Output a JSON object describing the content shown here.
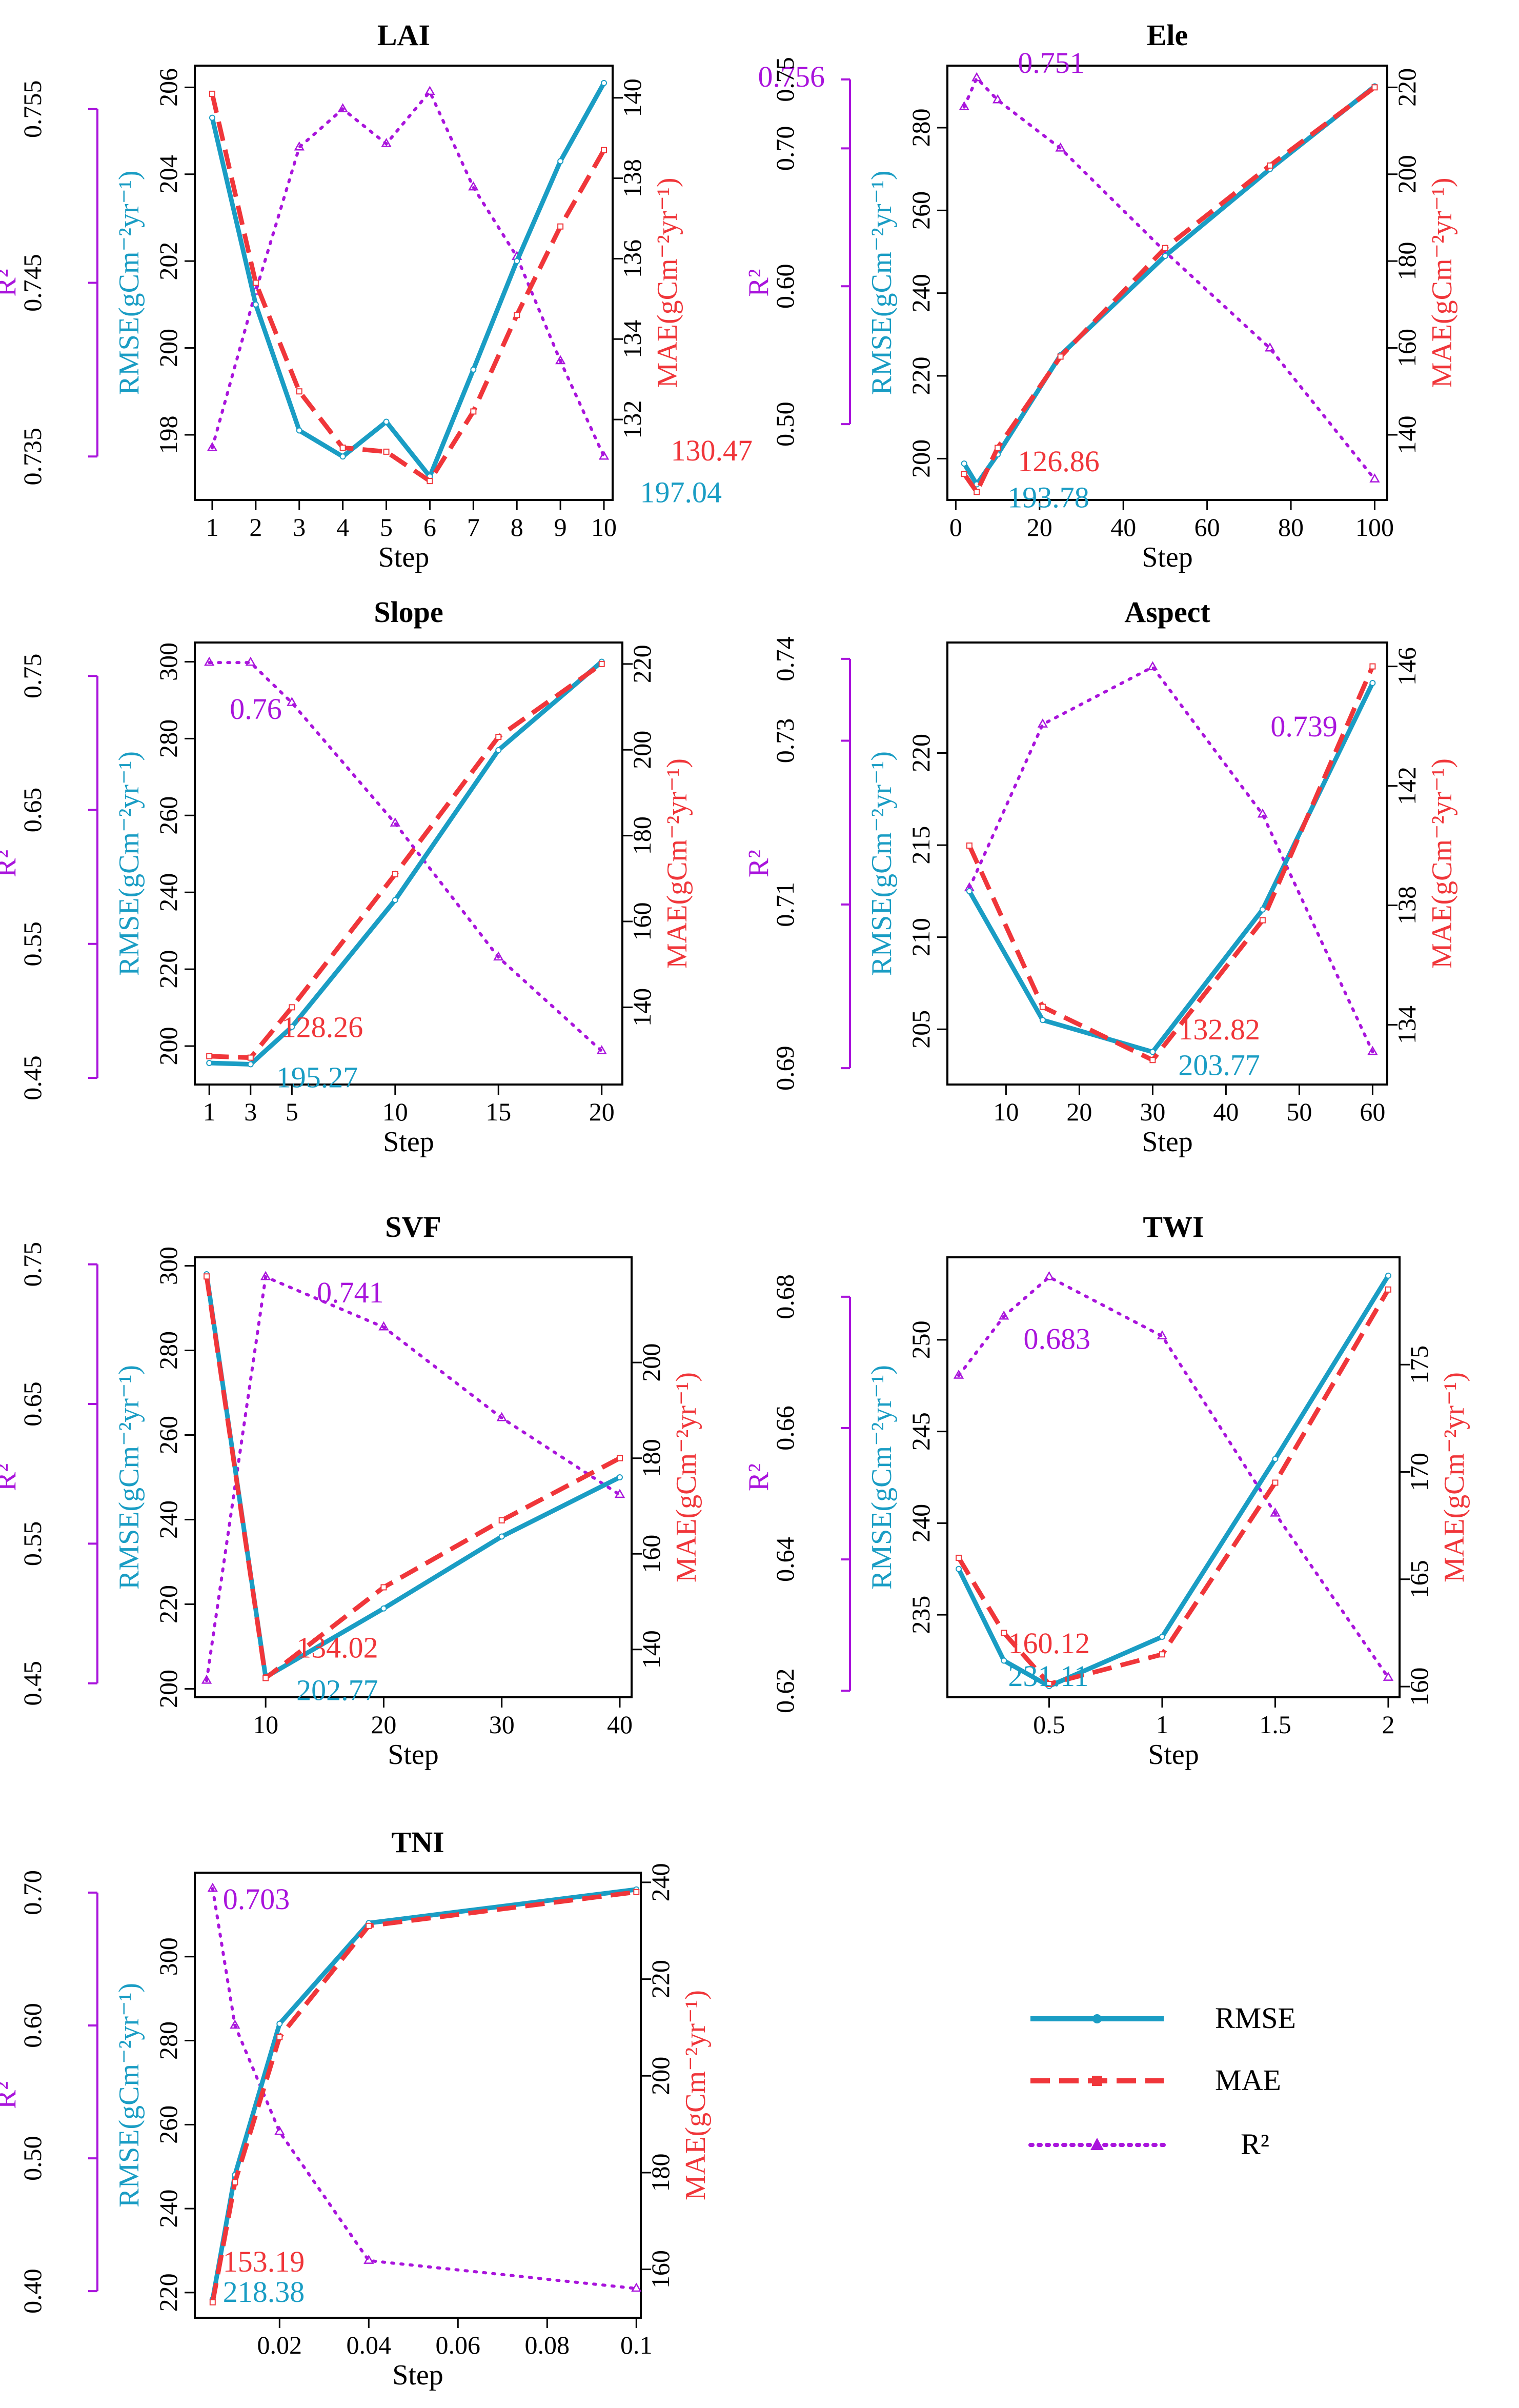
{
  "colors": {
    "rmse": "#1a9dc4",
    "mae": "#f0363a",
    "r2": "#a914dc",
    "axis": "#000000"
  },
  "legend": {
    "rmse_label": "RMSE",
    "mae_label": "MAE",
    "r2_label": "R²"
  },
  "chart_data": [
    {
      "type": "line",
      "title": "LAI",
      "xlabel": "Step",
      "ylabel_left": "RMSE(gCm⁻²yr⁻¹)",
      "ylabel_right": "MAE(gCm⁻²yr⁻¹)",
      "ylabel_r2": "R²",
      "x": [
        1,
        2,
        3,
        4,
        5,
        6,
        7,
        8,
        9,
        10
      ],
      "xlim": [
        0.6,
        10.2
      ],
      "xticks": [
        1,
        2,
        3,
        4,
        5,
        6,
        7,
        8,
        9,
        10
      ],
      "xtick_labels": [
        "1",
        "2",
        "3",
        "4",
        "5",
        "6",
        "7",
        "8",
        "9",
        "10"
      ],
      "rmse": [
        205.3,
        201.0,
        198.1,
        197.5,
        198.3,
        197.04,
        199.5,
        202.0,
        204.3,
        206.1
      ],
      "rmse_lim": [
        196.5,
        206.5
      ],
      "rmse_ticks": [
        198,
        200,
        202,
        204,
        206
      ],
      "mae": [
        140.1,
        135.4,
        132.7,
        131.3,
        131.2,
        130.47,
        132.2,
        134.6,
        136.8,
        138.7
      ],
      "mae_lim": [
        130.0,
        140.8
      ],
      "mae_ticks": [
        132,
        134,
        136,
        138,
        140
      ],
      "r2": [
        0.7355,
        0.7445,
        0.7528,
        0.755,
        0.753,
        0.756,
        0.7505,
        0.7465,
        0.7405,
        0.735
      ],
      "r2_lim": [
        0.7325,
        0.7575
      ],
      "r2_ticks": [
        0.735,
        0.745,
        0.755
      ],
      "r2_tick_labels": [
        "0.735",
        "0.745",
        "0.755"
      ],
      "annot_r2": "0.756",
      "annot_mae": "130.47",
      "annot_rmse": "197.04"
    },
    {
      "type": "line",
      "title": "Ele",
      "xlabel": "Step",
      "ylabel_left": "RMSE(gCm⁻²yr⁻¹)",
      "ylabel_right": "MAE(gCm⁻²yr⁻¹)",
      "ylabel_r2": "R²",
      "x": [
        2,
        5,
        10,
        25,
        50,
        75,
        100
      ],
      "xlim": [
        -2,
        103
      ],
      "xticks": [
        0,
        20,
        40,
        60,
        80,
        100
      ],
      "xtick_labels": [
        "0",
        "20",
        "40",
        "60",
        "80",
        "100"
      ],
      "rmse": [
        198.8,
        193.78,
        201.0,
        225.0,
        249.0,
        270.0,
        290.0
      ],
      "rmse_lim": [
        190,
        295
      ],
      "rmse_ticks": [
        200,
        220,
        240,
        260,
        280
      ],
      "mae": [
        131.0,
        126.86,
        137.0,
        158.0,
        183.0,
        202.0,
        220.0
      ],
      "mae_lim": [
        125,
        225
      ],
      "mae_ticks": [
        140,
        160,
        180,
        200,
        220
      ],
      "r2": [
        0.73,
        0.751,
        0.735,
        0.7,
        0.625,
        0.555,
        0.46
      ],
      "r2_lim": [
        0.445,
        0.76
      ],
      "r2_ticks": [
        0.5,
        0.6,
        0.7,
        0.75
      ],
      "r2_tick_labels": [
        "0.50",
        "0.60",
        "0.70",
        "0.75"
      ],
      "annot_r2": "0.751",
      "annot_mae": "126.86",
      "annot_rmse": "193.78"
    },
    {
      "type": "line",
      "title": "Slope",
      "xlabel": "Step",
      "ylabel_left": "RMSE(gCm⁻²yr⁻¹)",
      "ylabel_right": "MAE(gCm⁻²yr⁻¹)",
      "ylabel_r2": "R²",
      "x": [
        1,
        3,
        5,
        10,
        15,
        20
      ],
      "xlim": [
        0.3,
        21
      ],
      "xticks": [
        1,
        3,
        5,
        10,
        15,
        20
      ],
      "xtick_labels": [
        "1",
        "3",
        "5",
        "10",
        "15",
        "20"
      ],
      "rmse": [
        195.6,
        195.27,
        205.0,
        238.0,
        277.0,
        300.0
      ],
      "rmse_lim": [
        190,
        305
      ],
      "rmse_ticks": [
        200,
        220,
        240,
        260,
        280,
        300
      ],
      "mae": [
        128.6,
        128.26,
        140.0,
        171.0,
        203.0,
        220.0
      ],
      "mae_lim": [
        122,
        225
      ],
      "mae_ticks": [
        140,
        160,
        180,
        200,
        220
      ],
      "r2": [
        0.76,
        0.76,
        0.73,
        0.64,
        0.54,
        0.47
      ],
      "r2_lim": [
        0.445,
        0.775
      ],
      "r2_ticks": [
        0.45,
        0.55,
        0.65,
        0.75
      ],
      "r2_tick_labels": [
        "0.45",
        "0.55",
        "0.65",
        "0.75"
      ],
      "annot_r2": "0.76",
      "annot_mae": "128.26",
      "annot_rmse": "195.27"
    },
    {
      "type": "line",
      "title": "Aspect",
      "xlabel": "Step",
      "ylabel_left": "RMSE(gCm⁻²yr⁻¹)",
      "ylabel_right": "MAE(gCm⁻²yr⁻¹)",
      "ylabel_r2": "R²",
      "x": [
        5,
        15,
        30,
        45,
        60
      ],
      "xlim": [
        2,
        62
      ],
      "xticks": [
        10,
        20,
        30,
        40,
        50,
        60
      ],
      "xtick_labels": [
        "10",
        "20",
        "30",
        "40",
        "50",
        "60"
      ],
      "rmse": [
        212.5,
        205.5,
        203.77,
        211.5,
        223.8
      ],
      "rmse_lim": [
        202,
        226
      ],
      "rmse_ticks": [
        205,
        210,
        215,
        220
      ],
      "mae": [
        140.0,
        134.6,
        132.82,
        137.5,
        146.0
      ],
      "mae_lim": [
        132,
        146.8
      ],
      "mae_ticks": [
        134,
        138,
        142,
        146
      ],
      "r2": [
        0.712,
        0.732,
        0.739,
        0.721,
        0.692
      ],
      "r2_lim": [
        0.688,
        0.742
      ],
      "r2_ticks": [
        0.69,
        0.71,
        0.73,
        0.74
      ],
      "r2_tick_labels": [
        "0.69",
        "0.71",
        "0.73",
        "0.74"
      ],
      "annot_r2": "0.739",
      "annot_mae": "132.82",
      "annot_rmse": "203.77"
    },
    {
      "type": "line",
      "title": "SVF",
      "xlabel": "Step",
      "ylabel_left": "RMSE(gCm⁻²yr⁻¹)",
      "ylabel_right": "MAE(gCm⁻²yr⁻¹)",
      "ylabel_r2": "R²",
      "x": [
        5,
        10,
        20,
        30,
        40
      ],
      "xlim": [
        4,
        41
      ],
      "xticks": [
        10,
        20,
        30,
        40
      ],
      "xtick_labels": [
        "10",
        "20",
        "30",
        "40"
      ],
      "rmse": [
        298.0,
        202.77,
        219.0,
        236.0,
        250.0
      ],
      "rmse_lim": [
        198,
        302
      ],
      "rmse_ticks": [
        200,
        220,
        240,
        260,
        280,
        300
      ],
      "mae": [
        218.0,
        134.02,
        153.0,
        167.0,
        180.0
      ],
      "mae_lim": [
        130,
        222
      ],
      "mae_ticks": [
        140,
        160,
        180,
        200
      ],
      "r2": [
        0.452,
        0.741,
        0.705,
        0.64,
        0.585
      ],
      "r2_lim": [
        0.44,
        0.755
      ],
      "r2_ticks": [
        0.45,
        0.55,
        0.65,
        0.75
      ],
      "r2_tick_labels": [
        "0.45",
        "0.55",
        "0.65",
        "0.75"
      ],
      "annot_r2": "0.741",
      "annot_mae": "134.02",
      "annot_rmse": "202.77"
    },
    {
      "type": "line",
      "title": "TWI",
      "xlabel": "Step",
      "ylabel_left": "RMSE(gCm⁻²yr⁻¹)",
      "ylabel_right": "MAE(gCm⁻²yr⁻¹)",
      "ylabel_r2": "R²",
      "x": [
        0.1,
        0.3,
        0.5,
        1.0,
        1.5,
        2.0
      ],
      "xlim": [
        0.05,
        2.05
      ],
      "xticks": [
        0.5,
        1,
        1.5,
        2
      ],
      "xtick_labels": [
        "0.5",
        "1",
        "1.5",
        "2"
      ],
      "rmse": [
        237.5,
        232.5,
        231.11,
        233.8,
        243.5,
        253.5
      ],
      "rmse_lim": [
        230.5,
        254.5
      ],
      "rmse_ticks": [
        235,
        240,
        245,
        250
      ],
      "mae": [
        166.0,
        162.5,
        160.12,
        161.5,
        169.5,
        178.5
      ],
      "mae_lim": [
        159.5,
        180
      ],
      "mae_ticks": [
        160,
        165,
        170,
        175
      ],
      "r2": [
        0.668,
        0.677,
        0.683,
        0.674,
        0.647,
        0.622
      ],
      "r2_lim": [
        0.619,
        0.686
      ],
      "r2_ticks": [
        0.62,
        0.64,
        0.66,
        0.68
      ],
      "r2_tick_labels": [
        "0.62",
        "0.64",
        "0.66",
        "0.68"
      ],
      "annot_r2": "0.683",
      "annot_mae": "160.12",
      "annot_rmse": "231.11"
    },
    {
      "type": "line",
      "title": "TNI",
      "xlabel": "Step",
      "ylabel_left": "RMSE(gCm⁻²yr⁻¹)",
      "ylabel_right": "MAE(gCm⁻²yr⁻¹)",
      "ylabel_r2": "R²",
      "x": [
        0.005,
        0.01,
        0.02,
        0.04,
        0.1
      ],
      "xlim": [
        0.001,
        0.101
      ],
      "xticks": [
        0.02,
        0.04,
        0.06,
        0.08,
        0.1
      ],
      "xtick_labels": [
        "0.02",
        "0.04",
        "0.06",
        "0.08",
        "0.1"
      ],
      "rmse": [
        218.38,
        248.0,
        284.0,
        308.0,
        316.0
      ],
      "rmse_lim": [
        214,
        320
      ],
      "rmse_ticks": [
        220,
        240,
        260,
        280,
        300
      ],
      "mae": [
        153.19,
        178.0,
        208.0,
        231.0,
        238.0
      ],
      "mae_lim": [
        150,
        242
      ],
      "mae_ticks": [
        160,
        180,
        200,
        220,
        240
      ],
      "r2": [
        0.703,
        0.6,
        0.52,
        0.423,
        0.402
      ],
      "r2_lim": [
        0.38,
        0.715
      ],
      "r2_ticks": [
        0.4,
        0.5,
        0.6,
        0.7
      ],
      "r2_tick_labels": [
        "0.40",
        "0.50",
        "0.60",
        "0.70"
      ],
      "annot_r2": "0.703",
      "annot_mae": "153.19",
      "annot_rmse": "218.38"
    }
  ]
}
